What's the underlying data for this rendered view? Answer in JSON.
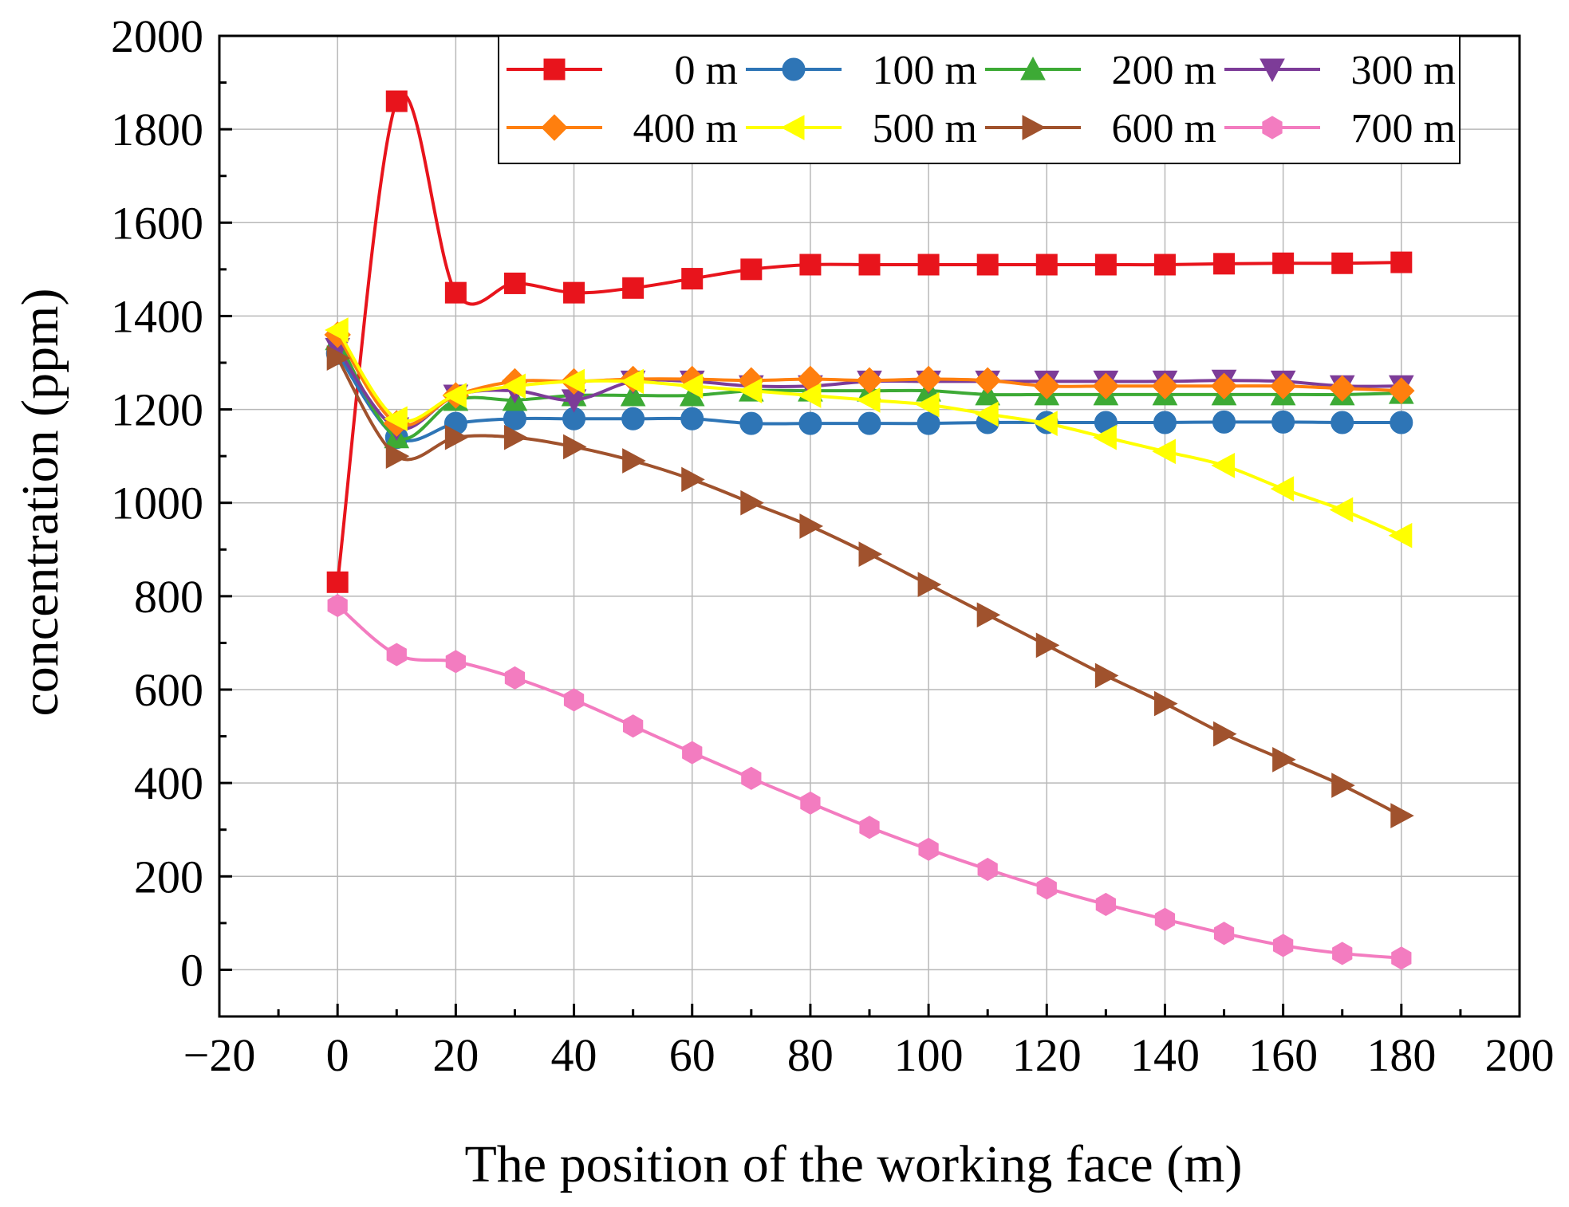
{
  "chart_data": {
    "type": "line",
    "xlabel": "The position of the working face (m)",
    "ylabel": "concentration (ppm)",
    "xlim": [
      -20,
      200
    ],
    "ylim": [
      -100,
      2000
    ],
    "xticks": [
      -20,
      0,
      20,
      40,
      60,
      80,
      100,
      120,
      140,
      160,
      180,
      200
    ],
    "yticks": [
      0,
      200,
      400,
      600,
      800,
      1000,
      1200,
      1400,
      1600,
      1800,
      2000
    ],
    "xtick_labels": [
      "−20",
      "0",
      "20",
      "40",
      "60",
      "80",
      "100",
      "120",
      "140",
      "160",
      "180",
      "200"
    ],
    "ytick_labels": [
      "0",
      "200",
      "400",
      "600",
      "800",
      "1000",
      "1200",
      "1400",
      "1600",
      "1800",
      "2000"
    ],
    "grid": true,
    "legend_position": "top-right",
    "x": [
      0,
      10,
      20,
      30,
      40,
      50,
      60,
      70,
      80,
      90,
      100,
      110,
      120,
      130,
      140,
      150,
      160,
      170,
      180
    ],
    "series": [
      {
        "name": "0 m",
        "color": "#e8141c",
        "marker": "square",
        "values": [
          830,
          1860,
          1450,
          1470,
          1450,
          1460,
          1480,
          1500,
          1510,
          1510,
          1510,
          1510,
          1510,
          1510,
          1510,
          1512,
          1513,
          1513,
          1515
        ]
      },
      {
        "name": "100 m",
        "color": "#2e75b6",
        "marker": "circle",
        "values": [
          1320,
          1140,
          1170,
          1180,
          1180,
          1180,
          1180,
          1170,
          1170,
          1170,
          1170,
          1172,
          1172,
          1172,
          1172,
          1173,
          1173,
          1172,
          1172
        ]
      },
      {
        "name": "200 m",
        "color": "#3daa35",
        "marker": "triangle-up",
        "values": [
          1350,
          1140,
          1220,
          1220,
          1230,
          1230,
          1230,
          1240,
          1240,
          1240,
          1240,
          1232,
          1232,
          1232,
          1232,
          1232,
          1232,
          1232,
          1235
        ]
      },
      {
        "name": "300 m",
        "color": "#7d3c98",
        "marker": "triangle-down",
        "values": [
          1330,
          1160,
          1230,
          1240,
          1220,
          1260,
          1260,
          1250,
          1250,
          1260,
          1260,
          1260,
          1260,
          1260,
          1260,
          1262,
          1260,
          1250,
          1250
        ]
      },
      {
        "name": "400 m",
        "color": "#ff7f0e",
        "marker": "diamond",
        "values": [
          1360,
          1170,
          1230,
          1260,
          1260,
          1265,
          1265,
          1262,
          1265,
          1262,
          1265,
          1262,
          1250,
          1250,
          1250,
          1250,
          1250,
          1245,
          1240
        ]
      },
      {
        "name": "500 m",
        "color": "#ffff00",
        "marker": "triangle-left",
        "values": [
          1370,
          1180,
          1230,
          1250,
          1260,
          1260,
          1250,
          1240,
          1230,
          1220,
          1210,
          1190,
          1170,
          1140,
          1110,
          1080,
          1030,
          985,
          930
        ]
      },
      {
        "name": "600 m",
        "color": "#a0522d",
        "marker": "triangle-right",
        "values": [
          1310,
          1100,
          1140,
          1140,
          1120,
          1090,
          1050,
          1000,
          950,
          890,
          825,
          760,
          695,
          630,
          570,
          505,
          450,
          395,
          330
        ]
      },
      {
        "name": "700 m",
        "color": "#f37cc0",
        "marker": "hexagon",
        "values": [
          780,
          675,
          660,
          625,
          578,
          522,
          465,
          410,
          357,
          305,
          258,
          215,
          175,
          140,
          108,
          78,
          52,
          35,
          25
        ]
      }
    ]
  }
}
